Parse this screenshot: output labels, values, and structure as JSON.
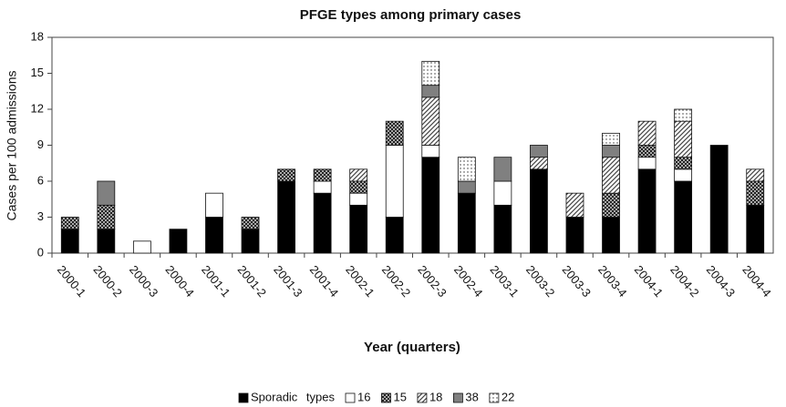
{
  "chart_data": {
    "type": "bar",
    "stacked": true,
    "title": "PFGE types among primary cases",
    "x_label": "Year (quarters)",
    "y_label": "Cases per 100 admissions",
    "categories": [
      "2000-1",
      "2000-2",
      "2000-3",
      "2000-4",
      "2001-1",
      "2001-2",
      "2001-3",
      "2001-4",
      "2002-1",
      "2002-2",
      "2002-3",
      "2002-4",
      "2003-1",
      "2003-2",
      "2003-3",
      "2003-4",
      "2004-1",
      "2004-2",
      "2004-3",
      "2004-4"
    ],
    "series": [
      {
        "name": "Sporadic types",
        "color": "#000000",
        "pattern": "solid",
        "values": [
          2,
          2,
          0,
          2,
          3,
          2,
          6,
          5,
          4,
          3,
          8,
          5,
          4,
          7,
          3,
          3,
          7,
          6,
          9,
          4
        ]
      },
      {
        "name": "16",
        "color": "#ffffff",
        "pattern": "solid",
        "values": [
          0,
          0,
          1,
          0,
          2,
          0,
          0,
          1,
          1,
          6,
          1,
          0,
          2,
          0,
          0,
          0,
          1,
          1,
          0,
          0
        ]
      },
      {
        "name": "15",
        "color": "#333333",
        "pattern": "crosshatch",
        "values": [
          1,
          2,
          0,
          0,
          0,
          1,
          1,
          1,
          1,
          2,
          0,
          0,
          0,
          0,
          0,
          2,
          1,
          1,
          0,
          2
        ]
      },
      {
        "name": "18",
        "color": "#555555",
        "pattern": "diagonal",
        "values": [
          0,
          0,
          0,
          0,
          0,
          0,
          0,
          0,
          1,
          0,
          4,
          0,
          0,
          1,
          2,
          3,
          2,
          3,
          0,
          1
        ]
      },
      {
        "name": "38",
        "color": "#808080",
        "pattern": "solid",
        "values": [
          0,
          2,
          0,
          0,
          0,
          0,
          0,
          0,
          0,
          0,
          1,
          1,
          2,
          1,
          0,
          1,
          0,
          0,
          0,
          0
        ]
      },
      {
        "name": "22",
        "color": "#444444",
        "pattern": "dots",
        "values": [
          0,
          0,
          0,
          0,
          0,
          0,
          0,
          0,
          0,
          0,
          2,
          2,
          0,
          0,
          0,
          1,
          0,
          1,
          0,
          0
        ]
      }
    ],
    "ylim": [
      0,
      18
    ],
    "yticks": [
      0,
      3,
      6,
      9,
      12,
      15,
      18
    ],
    "grid": false,
    "legend": "bottom"
  }
}
